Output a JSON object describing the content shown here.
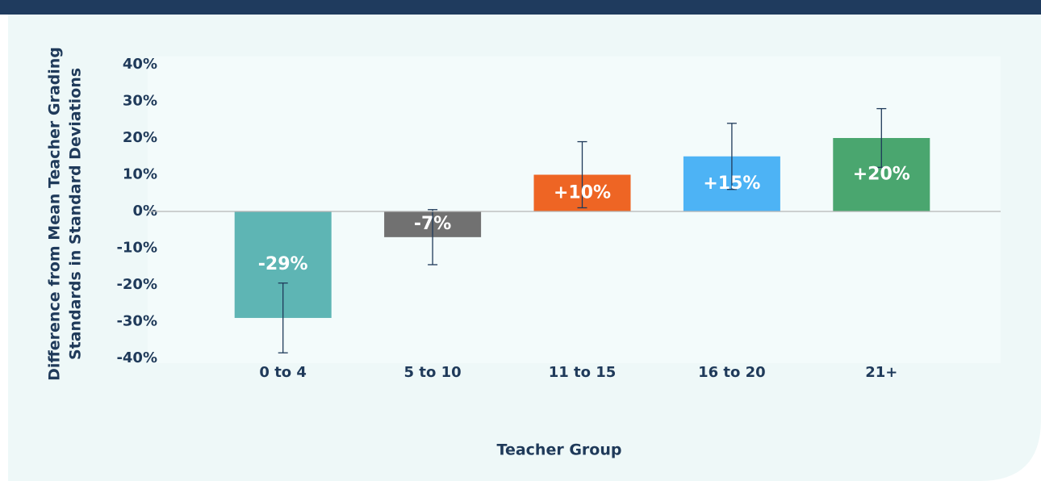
{
  "chart_data": {
    "type": "bar",
    "ylabel": [
      "Difference from Mean Teacher Grading",
      "Standards in Standard Deviations"
    ],
    "xlabel": "Teacher Group",
    "categories": [
      "0 to 4",
      "5 to 10",
      "11 to 15",
      "16 to 20",
      "21+"
    ],
    "values": [
      -29,
      -7,
      10,
      15,
      20
    ],
    "value_labels": [
      "-29%",
      "-7%",
      "+10%",
      "+15%",
      "+20%"
    ],
    "errors": [
      9.5,
      7.5,
      9,
      9,
      8
    ],
    "colors": [
      "#5eb5b4",
      "#717171",
      "#ee6524",
      "#4db3f5",
      "#4aa66f"
    ],
    "ylim": [
      -40,
      40
    ],
    "yticks": [
      {
        "value": -40,
        "label": "-40%"
      },
      {
        "value": -30,
        "label": "-30%"
      },
      {
        "value": -20,
        "label": "-20%"
      },
      {
        "value": -10,
        "label": "-10%"
      },
      {
        "value": 0,
        "label": "0%"
      },
      {
        "value": 10,
        "label": "10%"
      },
      {
        "value": 20,
        "label": "20%"
      },
      {
        "value": 30,
        "label": "30%"
      },
      {
        "value": 40,
        "label": "40%"
      }
    ]
  }
}
